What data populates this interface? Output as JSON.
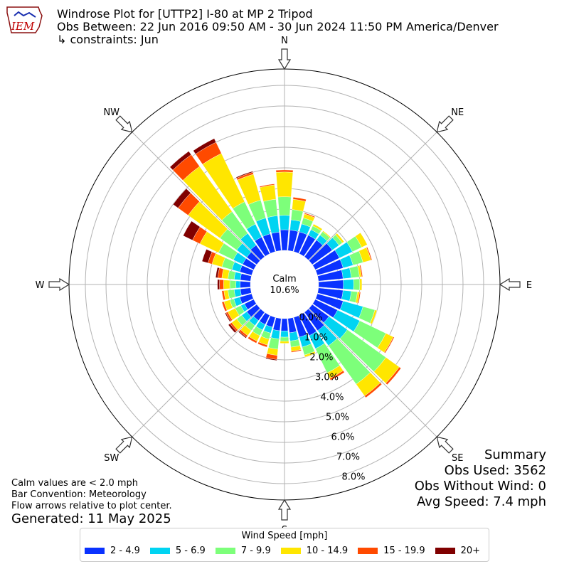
{
  "header": {
    "title": "Windrose Plot for [UTTP2] I-80 at MP 2 Tripod",
    "subtitle": "Obs Between: 22 Jun 2016 09:50 AM - 30 Jun 2024 11:50 PM America/Denver",
    "constraints": "↳ constraints: Jun",
    "logo_text": "IEM"
  },
  "notes": {
    "calm_def": "Calm values are < 2.0 mph",
    "bar_convention": "Bar Convention: Meteorology",
    "flow_arrows": "Flow arrows relative to plot center.",
    "generated": "Generated: 11 May 2025"
  },
  "summary": {
    "heading": "Summary",
    "obs_used": "Obs Used: 3562",
    "obs_without_wind": "Obs Without Wind: 0",
    "avg_speed": "Avg Speed: 7.4 mph"
  },
  "legend": {
    "title": "Wind Speed [mph]",
    "items": [
      {
        "label": "2 - 4.9",
        "color": "#0a32ff"
      },
      {
        "label": "5 - 6.9",
        "color": "#00d4f2"
      },
      {
        "label": "7 - 9.9",
        "color": "#7dff7a"
      },
      {
        "label": "10 - 14.9",
        "color": "#ffe600"
      },
      {
        "label": "15 - 19.9",
        "color": "#ff4a00"
      },
      {
        "label": "20+",
        "color": "#800000"
      }
    ]
  },
  "chart_data": {
    "type": "windrose",
    "title": "Windrose Plot for [UTTP2] I-80 at MP 2 Tripod",
    "calm_label": "Calm",
    "calm_percent": "10.6%",
    "radial_ticks": [
      "0.0%",
      "1.0%",
      "2.0%",
      "3.0%",
      "4.0%",
      "5.0%",
      "6.0%",
      "7.0%",
      "8.0%"
    ],
    "radial_max": 8.6,
    "compass": [
      "N",
      "NE",
      "E",
      "SE",
      "S",
      "SW",
      "W",
      "NW"
    ],
    "direction_count": 36,
    "speed_bins": [
      "2 - 4.9",
      "5 - 6.9",
      "7 - 9.9",
      "10 - 14.9",
      "15 - 19.9",
      "20+"
    ],
    "colors": [
      "#0a32ff",
      "#00d4f2",
      "#7dff7a",
      "#ffe600",
      "#ff4a00",
      "#800000"
    ],
    "directions": [
      {
        "dir": 0,
        "values": [
          1.0,
          0.7,
          0.9,
          1.2,
          0.1,
          0.0
        ]
      },
      {
        "dir": 10,
        "values": [
          1.0,
          0.5,
          0.5,
          0.5,
          0.1,
          0.0
        ]
      },
      {
        "dir": 20,
        "values": [
          1.0,
          0.4,
          0.3,
          0.2,
          0.05,
          0.0
        ]
      },
      {
        "dir": 30,
        "values": [
          1.0,
          0.3,
          0.2,
          0.1,
          0.0,
          0.0
        ]
      },
      {
        "dir": 40,
        "values": [
          1.0,
          0.3,
          0.2,
          0.05,
          0.0,
          0.0
        ]
      },
      {
        "dir": 50,
        "values": [
          1.2,
          0.4,
          0.2,
          0.1,
          0.0,
          0.0
        ]
      },
      {
        "dir": 60,
        "values": [
          1.3,
          0.7,
          0.5,
          0.3,
          0.0,
          0.0
        ]
      },
      {
        "dir": 70,
        "values": [
          1.3,
          0.5,
          0.5,
          0.4,
          0.05,
          0.0
        ]
      },
      {
        "dir": 80,
        "values": [
          1.2,
          0.4,
          0.4,
          0.1,
          0.05,
          0.0
        ]
      },
      {
        "dir": 90,
        "values": [
          1.2,
          0.5,
          0.3,
          0.1,
          0.0,
          0.0
        ]
      },
      {
        "dir": 100,
        "values": [
          1.2,
          0.4,
          0.3,
          0.1,
          0.05,
          0.0
        ]
      },
      {
        "dir": 110,
        "values": [
          1.3,
          1.0,
          0.6,
          0.1,
          0.0,
          0.0
        ]
      },
      {
        "dir": 120,
        "values": [
          1.2,
          1.2,
          1.4,
          0.4,
          0.05,
          0.0
        ]
      },
      {
        "dir": 130,
        "values": [
          1.0,
          1.1,
          2.3,
          0.8,
          0.1,
          0.0
        ]
      },
      {
        "dir": 140,
        "values": [
          1.1,
          0.9,
          2.3,
          0.7,
          0.1,
          0.0
        ]
      },
      {
        "dir": 150,
        "values": [
          1.1,
          0.7,
          1.3,
          0.3,
          0.1,
          0.0
        ]
      },
      {
        "dir": 160,
        "values": [
          1.0,
          0.5,
          0.4,
          0.1,
          0.0,
          0.0
        ]
      },
      {
        "dir": 170,
        "values": [
          0.7,
          0.4,
          0.3,
          0.2,
          0.05,
          0.0
        ]
      },
      {
        "dir": 180,
        "values": [
          0.6,
          0.3,
          0.2,
          0.1,
          0.0,
          0.0
        ]
      },
      {
        "dir": 190,
        "values": [
          0.6,
          0.4,
          0.5,
          0.3,
          0.2,
          0.05
        ]
      },
      {
        "dir": 200,
        "values": [
          0.5,
          0.3,
          0.3,
          0.3,
          0.1,
          0.0
        ]
      },
      {
        "dir": 210,
        "values": [
          0.5,
          0.3,
          0.3,
          0.3,
          0.1,
          0.0
        ]
      },
      {
        "dir": 220,
        "values": [
          0.5,
          0.3,
          0.3,
          0.3,
          0.1,
          0.05
        ]
      },
      {
        "dir": 230,
        "values": [
          0.6,
          0.3,
          0.3,
          0.3,
          0.1,
          0.1
        ]
      },
      {
        "dir": 240,
        "values": [
          0.5,
          0.2,
          0.3,
          0.4,
          0.1,
          0.05
        ]
      },
      {
        "dir": 250,
        "values": [
          0.6,
          0.3,
          0.2,
          0.3,
          0.1,
          0.0
        ]
      },
      {
        "dir": 260,
        "values": [
          0.5,
          0.3,
          0.3,
          0.2,
          0.1,
          0.0
        ]
      },
      {
        "dir": 270,
        "values": [
          0.5,
          0.2,
          0.3,
          0.3,
          0.2,
          0.1
        ]
      },
      {
        "dir": 280,
        "values": [
          0.5,
          0.3,
          0.3,
          0.3,
          0.2,
          0.1
        ]
      },
      {
        "dir": 290,
        "values": [
          0.6,
          0.4,
          0.5,
          0.5,
          0.2,
          0.3
        ]
      },
      {
        "dir": 300,
        "values": [
          0.6,
          0.5,
          0.8,
          1.0,
          0.4,
          0.5
        ]
      },
      {
        "dir": 310,
        "values": [
          0.6,
          0.6,
          1.0,
          1.9,
          0.6,
          0.3
        ]
      },
      {
        "dir": 320,
        "values": [
          0.7,
          0.7,
          1.3,
          2.7,
          0.7,
          0.2
        ]
      },
      {
        "dir": 330,
        "values": [
          0.9,
          0.7,
          1.2,
          2.6,
          0.6,
          0.2
        ]
      },
      {
        "dir": 340,
        "values": [
          0.9,
          0.8,
          0.9,
          1.3,
          0.1,
          0.05
        ]
      },
      {
        "dir": 350,
        "values": [
          0.9,
          0.8,
          0.8,
          0.7,
          0.05,
          0.0
        ]
      }
    ]
  }
}
